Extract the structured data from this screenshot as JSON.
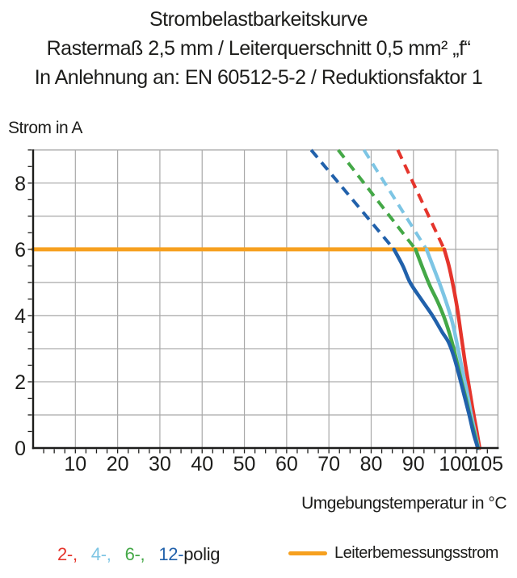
{
  "title": {
    "line1": "Strombelastbarkeitskurve",
    "line2": "Rastermaß 2,5 mm / Leiterquerschnitt 0,5 mm² „f“",
    "line3": "In Anlehnung an: EN 60512-5-2 / Reduktionsfaktor 1"
  },
  "colors": {
    "text": "#1d1d1b",
    "grid": "#a9a9a9",
    "axis": "#1d1d1b"
  },
  "legend": {
    "poles": [
      {
        "series": "2-polig",
        "label": "2-,",
        "color": "#e5352c"
      },
      {
        "series": "4-polig",
        "label": "4-,",
        "color": "#7dc5e4"
      },
      {
        "series": "6-polig",
        "label": "6-,",
        "color": "#44a847"
      },
      {
        "series": "12-polig",
        "label": "12-",
        "color": "#2161ab"
      }
    ],
    "poles_suffix": "polig",
    "rated_label": "Leiterbemessungsstrom",
    "rated_color": "#f6a01f"
  },
  "chart_data": {
    "type": "line",
    "x_label": "Umgebungstemperatur in °C",
    "y_label": "Strom in A",
    "x_range": [
      0,
      110
    ],
    "y_range": [
      0,
      9
    ],
    "x_ticks_labeled": [
      10,
      20,
      30,
      40,
      50,
      60,
      70,
      80,
      90,
      100,
      105
    ],
    "x_minor_tick_step": 2.5,
    "y_ticks_labeled": [
      0,
      2,
      4,
      6,
      8
    ],
    "y_minor_tick_step": 0.5,
    "grid": {
      "on": true,
      "x_step": 10,
      "y_step": 1,
      "color": "#a9a9a9"
    },
    "rated_line": {
      "label": "Leiterbemessungsstrom",
      "current_a": 6,
      "temp_from_c": 0,
      "temp_to_c": 97.3,
      "color": "#f6a01f"
    },
    "series": [
      {
        "name": "2-polig",
        "color": "#e5352c",
        "dashed_points": [
          [
            86.3,
            9
          ],
          [
            97.3,
            6
          ]
        ],
        "solid_points": [
          [
            97.3,
            6
          ],
          [
            98.4,
            5.5
          ],
          [
            99.4,
            4.9
          ],
          [
            100.4,
            4.2
          ],
          [
            101.3,
            3.4
          ],
          [
            102.2,
            2.6
          ],
          [
            103.1,
            1.9
          ],
          [
            104.0,
            1.2
          ],
          [
            105.0,
            0.5
          ],
          [
            105.6,
            0.05
          ],
          [
            105.65,
            0
          ]
        ]
      },
      {
        "name": "4-polig",
        "color": "#7dc5e4",
        "dashed_points": [
          [
            78.3,
            9
          ],
          [
            93.1,
            6
          ]
        ],
        "solid_points": [
          [
            93.1,
            6
          ],
          [
            94.9,
            5.4
          ],
          [
            96.4,
            4.9
          ],
          [
            97.9,
            4.35
          ],
          [
            99.2,
            3.8
          ],
          [
            100.4,
            3.1
          ],
          [
            101.5,
            2.4
          ],
          [
            102.6,
            1.75
          ],
          [
            103.7,
            1.0
          ],
          [
            104.7,
            0.4
          ],
          [
            105.4,
            0
          ]
        ]
      },
      {
        "name": "6-polig",
        "color": "#44a847",
        "dashed_points": [
          [
            72.2,
            9
          ],
          [
            90.5,
            6
          ]
        ],
        "solid_points": [
          [
            90.5,
            6
          ],
          [
            92.3,
            5.4
          ],
          [
            93.9,
            4.9
          ],
          [
            95.8,
            4.4
          ],
          [
            97.4,
            3.9
          ],
          [
            98.9,
            3.3
          ],
          [
            100.1,
            2.7
          ],
          [
            101.2,
            2.1
          ],
          [
            102.4,
            1.5
          ],
          [
            103.5,
            0.9
          ],
          [
            104.5,
            0.4
          ],
          [
            105.3,
            0
          ]
        ]
      },
      {
        "name": "12-polig",
        "color": "#2161ab",
        "dashed_points": [
          [
            65.8,
            9
          ],
          [
            85.4,
            6
          ]
        ],
        "solid_points": [
          [
            85.4,
            6
          ],
          [
            87.5,
            5.5
          ],
          [
            89.2,
            5.0
          ],
          [
            91.8,
            4.5
          ],
          [
            94.5,
            4.0
          ],
          [
            96.8,
            3.5
          ],
          [
            98.3,
            3.2
          ],
          [
            99.6,
            2.75
          ],
          [
            100.8,
            2.2
          ],
          [
            102.0,
            1.6
          ],
          [
            103.2,
            1.0
          ],
          [
            104.2,
            0.45
          ],
          [
            105.0,
            0.1
          ],
          [
            105.2,
            0
          ]
        ]
      }
    ]
  }
}
